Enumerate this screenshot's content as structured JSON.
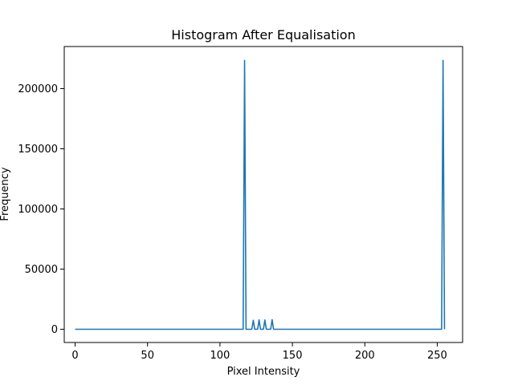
{
  "chart_data": {
    "type": "line",
    "title": "Histogram After Equalisation",
    "xlabel": "Pixel Intensity",
    "ylabel": "Frequency",
    "xlim": [
      -7.5,
      267.5
    ],
    "ylim": [
      -11000,
      235000
    ],
    "x_ticks": [
      0,
      50,
      100,
      150,
      200,
      250
    ],
    "y_ticks": [
      0,
      50000,
      100000,
      150000,
      200000
    ],
    "grid": false,
    "legend": "none",
    "series": [
      {
        "color": "#1f77b4",
        "points": [
          [
            0,
            0
          ],
          [
            116,
            0
          ],
          [
            117,
            223500
          ],
          [
            118,
            0
          ],
          [
            122,
            0
          ],
          [
            123,
            7500
          ],
          [
            124,
            0
          ],
          [
            126,
            0
          ],
          [
            127,
            7800
          ],
          [
            128,
            0
          ],
          [
            130,
            0
          ],
          [
            131,
            7700
          ],
          [
            132,
            0
          ],
          [
            135,
            0
          ],
          [
            136,
            8000
          ],
          [
            137,
            0
          ],
          [
            253,
            0
          ],
          [
            254,
            223500
          ],
          [
            255,
            0
          ]
        ]
      }
    ]
  }
}
